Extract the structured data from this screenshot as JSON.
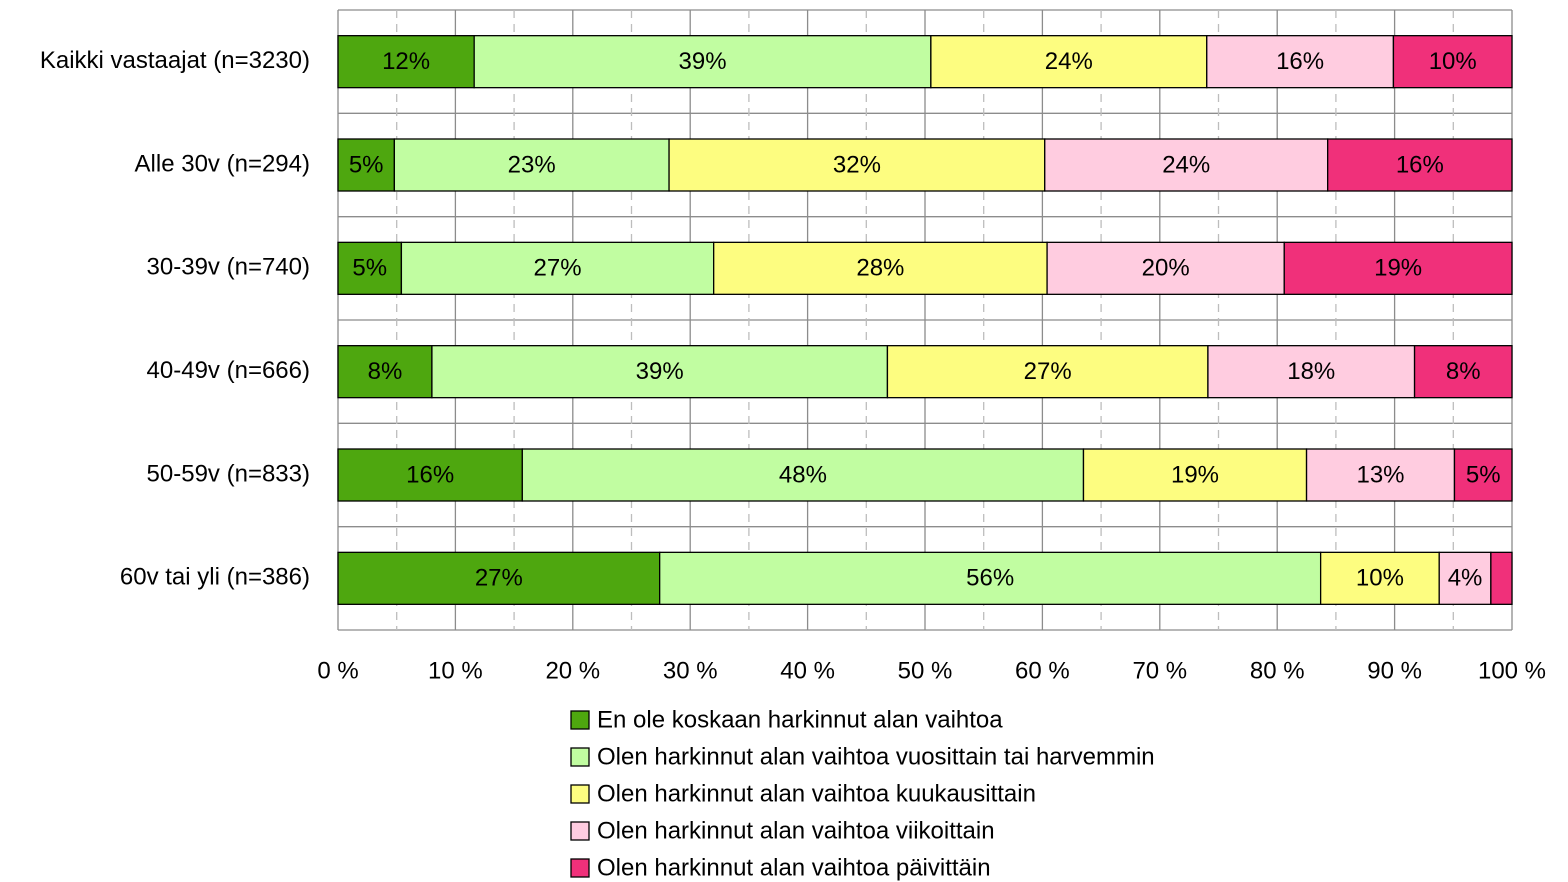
{
  "chart_data": {
    "type": "stacked-barh",
    "categories": [
      "Kaikki vastaajat (n=3230)",
      "Alle 30v (n=294)",
      "30-39v (n=740)",
      "40-49v (n=666)",
      "50-59v (n=833)",
      "60v tai yli (n=386)"
    ],
    "series": [
      {
        "name": "En ole koskaan harkinnut alan vaihtoa",
        "color": "#4ea70f",
        "values": [
          11.6,
          4.8,
          5.4,
          8.0,
          15.7,
          27.4
        ],
        "value_labels": [
          "12%",
          "5%",
          "5%",
          "8%",
          "16%",
          "27%"
        ]
      },
      {
        "name": "Olen harkinnut alan vaihtoa vuosittain tai harvemmin",
        "color": "#c1fda1",
        "values": [
          38.9,
          23.4,
          26.6,
          38.8,
          47.8,
          56.3
        ],
        "value_labels": [
          "39%",
          "23%",
          "27%",
          "39%",
          "48%",
          "56%"
        ]
      },
      {
        "name": "Olen harkinnut alan vaihtoa kuukausittain",
        "color": "#fdfd80",
        "values": [
          23.5,
          32.0,
          28.4,
          27.3,
          19.0,
          10.1
        ],
        "value_labels": [
          "24%",
          "32%",
          "28%",
          "27%",
          "19%",
          "10%"
        ]
      },
      {
        "name": "Olen harkinnut alan vaihtoa viikoittain",
        "color": "#ffcce0",
        "values": [
          15.9,
          24.1,
          20.2,
          17.6,
          12.6,
          4.4
        ],
        "value_labels": [
          "16%",
          "24%",
          "20%",
          "18%",
          "13%",
          "4%"
        ]
      },
      {
        "name": "Olen harkinnut alan vaihtoa päivittäin",
        "color": "#f0307a",
        "values": [
          10.1,
          15.7,
          19.4,
          8.3,
          4.9,
          1.8
        ],
        "value_labels": [
          "10%",
          "16%",
          "19%",
          "8%",
          "5%",
          null
        ]
      }
    ],
    "xlim": [
      0,
      100
    ],
    "xticks": [
      {
        "value": 0,
        "label": "0 %"
      },
      {
        "value": 10,
        "label": "10 %"
      },
      {
        "value": 20,
        "label": "20 %"
      },
      {
        "value": 30,
        "label": "30 %"
      },
      {
        "value": 40,
        "label": "40 %"
      },
      {
        "value": 50,
        "label": "50 %"
      },
      {
        "value": 60,
        "label": "60 %"
      },
      {
        "value": 70,
        "label": "70 %"
      },
      {
        "value": 80,
        "label": "80 %"
      },
      {
        "value": 90,
        "label": "90 %"
      },
      {
        "value": 100,
        "label": "100 %"
      }
    ],
    "xminorticks": [
      5,
      15,
      25,
      35,
      45,
      55,
      65,
      75,
      85,
      95
    ],
    "grid": true,
    "legend": "bottom"
  }
}
